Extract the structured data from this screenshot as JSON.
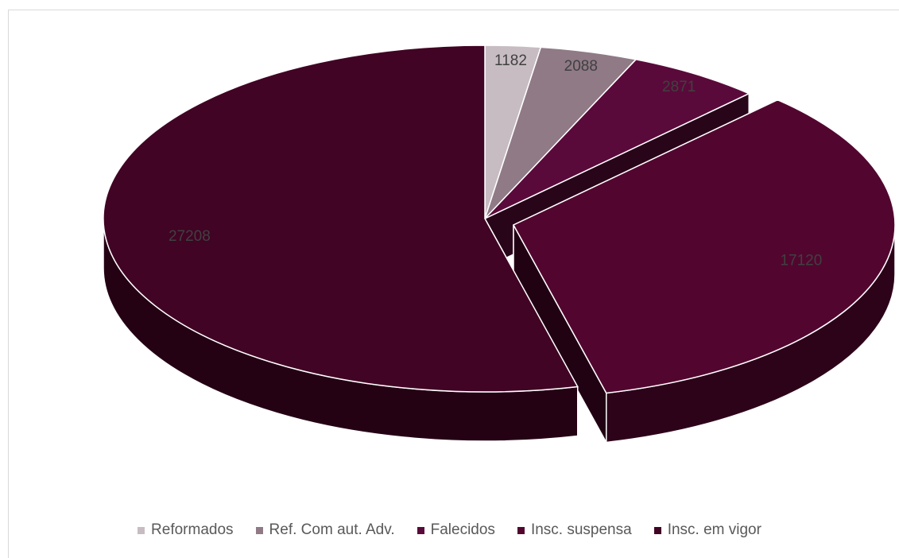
{
  "chart_data": {
    "type": "pie",
    "variant": "3d-exploded",
    "title": "",
    "legend_position": "bottom",
    "slices": [
      {
        "name": "Reformados",
        "value": 1182,
        "color": "#c7bcc2",
        "exploded": false
      },
      {
        "name": "Ref. Com aut. Adv.",
        "value": 2088,
        "color": "#8f7a86",
        "exploded": false
      },
      {
        "name": "Falecidos",
        "value": 2871,
        "color": "#5a0a3a",
        "exploded": false
      },
      {
        "name": "Insc. suspensa",
        "value": 17120,
        "color": "#52062f",
        "exploded": true
      },
      {
        "name": "Insc. em vigor",
        "value": 27208,
        "color": "#410424",
        "exploded": false
      }
    ],
    "label_color": "#404040"
  }
}
